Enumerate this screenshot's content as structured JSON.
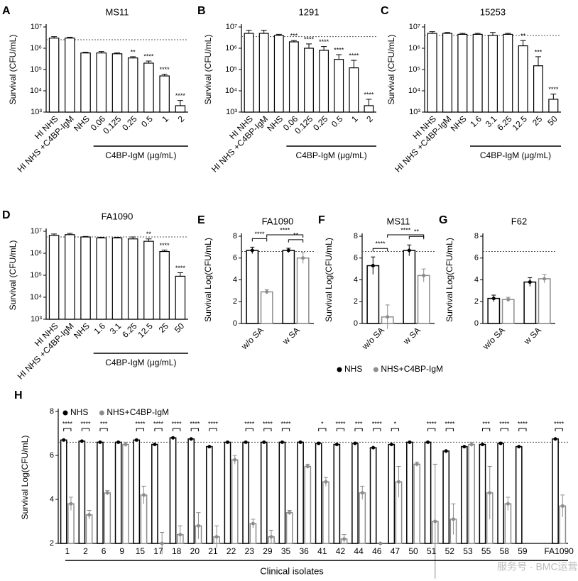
{
  "chart_data": [
    {
      "type": "bar",
      "label": "A",
      "title": "MS11",
      "ylabel": "Survival (CFU/mL)",
      "log_scale": true,
      "categories": [
        "HI NHS",
        "HI NHS +C4BP-IgM",
        "NHS",
        "0.06",
        "0.125",
        "0.25",
        "0.5",
        "1",
        "2"
      ],
      "values": [
        3000000,
        3000000,
        600000,
        600000,
        550000,
        350000,
        200000,
        50000,
        2000
      ],
      "errors": [
        500000,
        300000,
        50000,
        100000,
        50000,
        50000,
        50000,
        10000,
        1500
      ],
      "stars": [
        null,
        null,
        null,
        null,
        null,
        "**",
        "****",
        "****",
        "****"
      ],
      "group_label": "C4BP-IgM (μg/mL)",
      "reference_line": 2500000,
      "bar_color": "#ffffff",
      "edge_color": "#000000",
      "ylim": [
        1000,
        10000000
      ],
      "yticks": [
        {
          "value": 1000,
          "label": "10³"
        },
        {
          "value": 10000,
          "label": "10⁴"
        },
        {
          "value": 100000,
          "label": "10⁵"
        },
        {
          "value": 1000000,
          "label": "10⁶"
        },
        {
          "value": 10000000,
          "label": "10⁷"
        }
      ]
    },
    {
      "type": "bar",
      "label": "B",
      "title": "1291",
      "ylabel": "Survival (CFU/mL)",
      "log_scale": true,
      "categories": [
        "HI NHS",
        "HI NHS +C4BP-IgM",
        "NHS",
        "0.06",
        "0.125",
        "0.25",
        "0.5",
        "1",
        "2"
      ],
      "values": [
        5000000,
        5000000,
        4000000,
        2000000,
        1000000,
        800000,
        300000,
        120000,
        2000
      ],
      "errors": [
        2000000,
        2000000,
        500000,
        300000,
        600000,
        400000,
        200000,
        150000,
        2000
      ],
      "stars": [
        null,
        null,
        null,
        "***",
        "****",
        "****",
        "****",
        "****",
        "****"
      ],
      "group_label": "C4BP-IgM (μg/mL)",
      "reference_line": 3500000,
      "bar_color": "#ffffff",
      "edge_color": "#000000",
      "ylim": [
        1000,
        10000000
      ],
      "yticks": [
        {
          "value": 1000,
          "label": "10³"
        },
        {
          "value": 10000,
          "label": "10⁴"
        },
        {
          "value": 100000,
          "label": "10⁵"
        },
        {
          "value": 1000000,
          "label": "10⁶"
        },
        {
          "value": 10000000,
          "label": "10⁷"
        }
      ]
    },
    {
      "type": "bar",
      "label": "C",
      "title": "15253",
      "ylabel": "Survival (CFU/mL)",
      "log_scale": true,
      "categories": [
        "HI NHS",
        "HI NHS +C4BP-IgM",
        "NHS",
        "1.6",
        "3.1",
        "6.25",
        "12.5",
        "25",
        "50"
      ],
      "values": [
        5000000,
        5000000,
        4500000,
        4500000,
        4000000,
        4500000,
        1300000,
        150000,
        4000
      ],
      "errors": [
        1000000,
        500000,
        500000,
        500000,
        1500000,
        500000,
        1000000,
        250000,
        3000
      ],
      "stars": [
        null,
        null,
        null,
        null,
        null,
        null,
        "**",
        "***",
        "****"
      ],
      "group_label": "C4BP-IgM (μg/mL)",
      "reference_line": 4000000,
      "bar_color": "#ffffff",
      "edge_color": "#000000",
      "ylim": [
        1000,
        10000000
      ],
      "yticks": [
        {
          "value": 1000,
          "label": "10³"
        },
        {
          "value": 10000,
          "label": "10⁴"
        },
        {
          "value": 100000,
          "label": "10⁵"
        },
        {
          "value": 1000000,
          "label": "10⁶"
        },
        {
          "value": 10000000,
          "label": "10⁷"
        }
      ]
    },
    {
      "type": "bar",
      "label": "D",
      "title": "FA1090",
      "ylabel": "Survival (CFU/mL)",
      "log_scale": true,
      "categories": [
        "HI NHS",
        "HI NHS +C4BP-IgM",
        "NHS",
        "1.6",
        "3.1",
        "6.25",
        "12.5",
        "25",
        "50"
      ],
      "values": [
        6500000,
        7000000,
        5500000,
        5000000,
        5000000,
        4500000,
        3500000,
        1200000,
        90000
      ],
      "errors": [
        1000000,
        1000000,
        300000,
        300000,
        300000,
        1000000,
        1000000,
        200000,
        40000
      ],
      "stars": [
        null,
        null,
        null,
        null,
        null,
        null,
        "**",
        "****",
        "****"
      ],
      "group_label": "C4BP-IgM (μg/mL)",
      "reference_line": 5500000,
      "bar_color": "#ffffff",
      "edge_color": "#000000",
      "ylim": [
        1000,
        10000000
      ],
      "yticks": [
        {
          "value": 1000,
          "label": "10³"
        },
        {
          "value": 10000,
          "label": "10⁴"
        },
        {
          "value": 100000,
          "label": "10⁵"
        },
        {
          "value": 1000000,
          "label": "10⁶"
        },
        {
          "value": 10000000,
          "label": "10⁷"
        }
      ]
    },
    {
      "type": "grouped_bar",
      "label": "E",
      "title": "FA1090",
      "ylabel": "Survival Log(CFU/mL)",
      "categories": [
        "w/o SA",
        "w SA"
      ],
      "series": [
        {
          "name": "NHS",
          "color": "#000000",
          "values": [
            6.7,
            6.7
          ],
          "errors": [
            0.3,
            0.2
          ]
        },
        {
          "name": "NHS+C4BP-IgM",
          "color": "#8c8c8c",
          "values": [
            2.9,
            6.0
          ],
          "errors": [
            0.2,
            0.5
          ]
        }
      ],
      "comparisons": [
        {
          "label": "****",
          "a": [
            0,
            0
          ],
          "b": [
            1,
            0
          ]
        },
        {
          "label": "****",
          "a": [
            1,
            0
          ],
          "b": [
            1,
            1
          ]
        },
        {
          "label": "**",
          "a": [
            0,
            1
          ],
          "b": [
            1,
            1
          ]
        }
      ],
      "reference_line": 6.6,
      "ylim": [
        0,
        8
      ],
      "yticks": [
        0,
        2,
        4,
        6,
        8
      ]
    },
    {
      "type": "grouped_bar",
      "label": "F",
      "title": "MS11",
      "ylabel": "Survival Log(CFU/mL)",
      "categories": [
        "w/o SA",
        "w SA"
      ],
      "series": [
        {
          "color": "#000000",
          "values": [
            5.3,
            6.7
          ],
          "errors": [
            0.8,
            0.5
          ]
        },
        {
          "color": "#8c8c8c",
          "values": [
            0.6,
            4.4
          ],
          "errors": [
            1.1,
            0.6
          ]
        }
      ],
      "comparisons": [
        {
          "label": "****",
          "a": [
            0,
            0
          ],
          "b": [
            1,
            0
          ]
        },
        {
          "label": "****",
          "a": [
            1,
            0
          ],
          "b": [
            1,
            1
          ]
        },
        {
          "label": "**",
          "a": [
            0,
            1
          ],
          "b": [
            1,
            1
          ]
        }
      ],
      "reference_line": 6.6,
      "ylim": [
        0,
        8
      ],
      "yticks": [
        0,
        2,
        4,
        6,
        8
      ]
    },
    {
      "type": "grouped_bar",
      "label": "G",
      "title": "F62",
      "ylabel": "Survival Log(CFU/mL)",
      "categories": [
        "w/o SA",
        "w SA"
      ],
      "series": [
        {
          "color": "#000000",
          "values": [
            2.3,
            3.8
          ],
          "errors": [
            0.3,
            0.4
          ]
        },
        {
          "color": "#8c8c8c",
          "values": [
            2.2,
            4.1
          ],
          "errors": [
            0.2,
            0.4
          ]
        }
      ],
      "comparisons": [],
      "reference_line": 6.6,
      "ylim": [
        0,
        8
      ],
      "yticks": [
        0,
        2,
        4,
        6,
        8
      ]
    },
    {
      "type": "grouped_bar",
      "label": "H",
      "ylabel": "Survival Log(CFU/mL)",
      "xlabel": "Clinical isolates",
      "categories": [
        "1",
        "2",
        "6",
        "9",
        "15",
        "17",
        "18",
        "20",
        "21",
        "22",
        "23",
        "29",
        "35",
        "36",
        "41",
        "42",
        "44",
        "46",
        "47",
        "50",
        "51",
        "52",
        "53",
        "55",
        "58",
        "59",
        "FA1090"
      ],
      "series": [
        {
          "name": "NHS",
          "color": "#000000",
          "values": [
            6.7,
            6.65,
            6.6,
            6.6,
            6.7,
            6.5,
            6.8,
            6.75,
            6.4,
            6.6,
            6.6,
            6.6,
            6.6,
            6.6,
            6.55,
            6.5,
            6.55,
            6.35,
            6.5,
            6.6,
            6.6,
            6.2,
            6.4,
            6.5,
            6.55,
            6.4,
            6.75
          ]
        },
        {
          "name": "NHS+C4BP-IgM",
          "color": "#8c8c8c",
          "values": [
            3.8,
            3.3,
            4.3,
            6.5,
            4.2,
            2.0,
            2.4,
            2.8,
            2.3,
            5.8,
            2.9,
            2.3,
            3.4,
            5.5,
            4.8,
            2.2,
            4.3,
            2.0,
            4.8,
            5.6,
            3.0,
            3.1,
            6.5,
            4.3,
            3.8,
            null,
            3.7
          ],
          "errors": [
            0.3,
            0.2,
            0.1,
            0.1,
            0.4,
            0.5,
            0.4,
            0.6,
            0.5,
            0.2,
            0.2,
            0.3,
            0.1,
            0.1,
            0.2,
            0.2,
            0.3,
            null,
            0.7,
            0.1,
            2.6,
            0.7,
            0.1,
            1.2,
            0.3,
            null,
            0.5
          ]
        }
      ],
      "stars": [
        "****",
        "****",
        "***",
        null,
        "****",
        "****",
        "****",
        "****",
        "****",
        null,
        "****",
        "****",
        "****",
        null,
        "*",
        "****",
        "***",
        "****",
        "*",
        null,
        "****",
        "****",
        null,
        "***",
        "****",
        "****",
        "****"
      ],
      "reference_line": 6.6,
      "ylim": [
        2,
        8
      ],
      "yticks": [
        2,
        4,
        6,
        8
      ]
    }
  ],
  "watermark": "服务号 · BMC运营"
}
